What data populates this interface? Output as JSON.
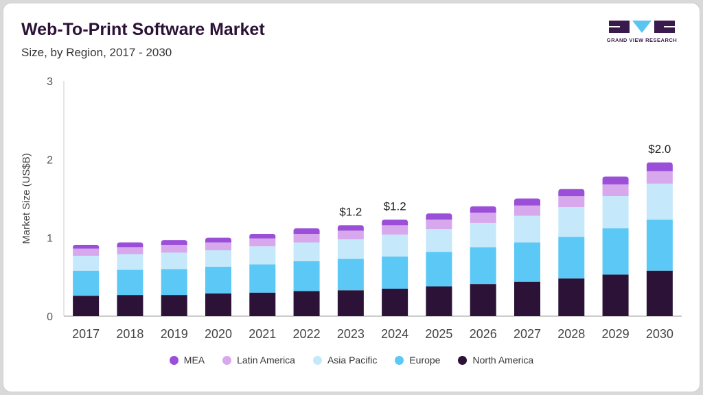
{
  "header": {
    "title": "Web-To-Print Software Market",
    "subtitle": "Size, by Region, 2017 - 2030"
  },
  "logo": {
    "text": "GRAND VIEW RESEARCH",
    "colors": {
      "dark": "#3a1a4d",
      "accent": "#5bc5f2"
    }
  },
  "chart_data": {
    "type": "bar",
    "stacked": true,
    "ylabel": "Market Size (US$B)",
    "ylim": [
      0,
      3
    ],
    "yticks": [
      0,
      1,
      2,
      3
    ],
    "categories": [
      "2017",
      "2018",
      "2019",
      "2020",
      "2021",
      "2022",
      "2023",
      "2024",
      "2025",
      "2026",
      "2027",
      "2028",
      "2029",
      "2030"
    ],
    "series": [
      {
        "name": "North America",
        "color": "#2b1236",
        "values": [
          0.26,
          0.27,
          0.27,
          0.29,
          0.3,
          0.32,
          0.33,
          0.35,
          0.38,
          0.41,
          0.44,
          0.48,
          0.53,
          0.58
        ]
      },
      {
        "name": "Europe",
        "color": "#5bc8f5",
        "values": [
          0.32,
          0.32,
          0.33,
          0.34,
          0.36,
          0.38,
          0.4,
          0.41,
          0.44,
          0.47,
          0.5,
          0.53,
          0.59,
          0.65
        ]
      },
      {
        "name": "Asia Pacific",
        "color": "#c5e9fb",
        "values": [
          0.19,
          0.2,
          0.21,
          0.21,
          0.23,
          0.24,
          0.25,
          0.28,
          0.29,
          0.31,
          0.34,
          0.38,
          0.41,
          0.46
        ]
      },
      {
        "name": "Latin America",
        "color": "#d7a8ec",
        "values": [
          0.09,
          0.09,
          0.1,
          0.1,
          0.1,
          0.11,
          0.11,
          0.12,
          0.12,
          0.13,
          0.13,
          0.14,
          0.15,
          0.16
        ]
      },
      {
        "name": "MEA",
        "color": "#9b4fd8",
        "values": [
          0.05,
          0.06,
          0.06,
          0.06,
          0.06,
          0.07,
          0.07,
          0.07,
          0.08,
          0.08,
          0.09,
          0.09,
          0.1,
          0.11
        ]
      }
    ],
    "annotations": [
      {
        "category": "2023",
        "label": "$1.2"
      },
      {
        "category": "2024",
        "label": "$1.2"
      },
      {
        "category": "2030",
        "label": "$2.0"
      }
    ],
    "legend": {
      "position": "bottom",
      "order": [
        "MEA",
        "Latin America",
        "Asia Pacific",
        "Europe",
        "North America"
      ]
    },
    "grid": false
  }
}
